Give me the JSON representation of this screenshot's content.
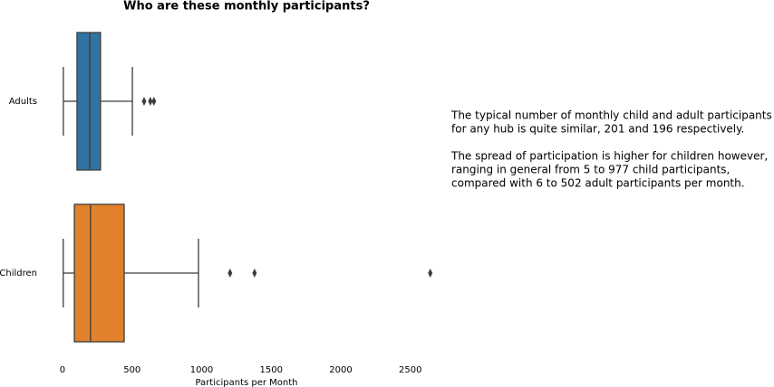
{
  "chart_data": {
    "type": "box",
    "title": "Who are these monthly participants?",
    "x_label": "Participants per Month",
    "categories": [
      "Adults",
      "Children"
    ],
    "series": [
      {
        "name": "Adults",
        "color": "#3274a1",
        "min": 6,
        "q1": 104,
        "median": 196,
        "q3": 273,
        "max": 502,
        "outliers": [
          586,
          631,
          657
        ]
      },
      {
        "name": "Children",
        "color": "#e1812c",
        "min": 5,
        "q1": 85,
        "median": 201,
        "q3": 443,
        "max": 977,
        "outliers": [
          1204,
          1380,
          2643
        ]
      }
    ],
    "xlim": [
      -127,
      2775
    ],
    "xticks": [
      0,
      500,
      1000,
      1500,
      2000,
      2500
    ],
    "annotation": [
      [
        "The typical number of monthly child and adult participants",
        "for any hub is quite similar, 201 and 196 respectively."
      ],
      [
        "The spread of participation is higher for children however,",
        "ranging in general from 5 to 977 child participants,",
        "compared with 6 to 502 adult participants per month."
      ]
    ]
  }
}
